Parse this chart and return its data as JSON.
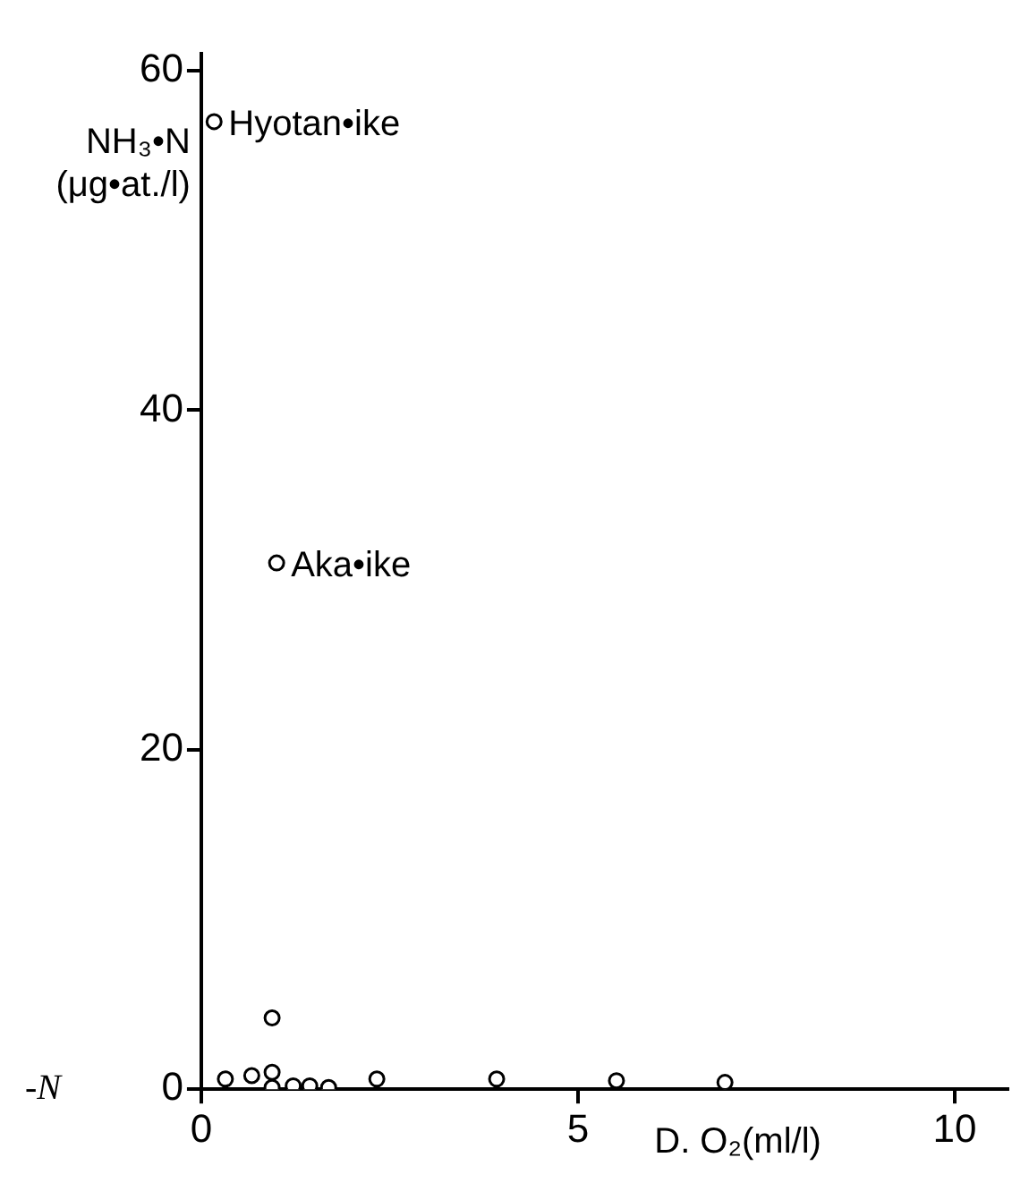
{
  "chart_data": {
    "type": "scatter",
    "xlabel": "D. O₂(ml/l)",
    "ylabel": "NH₃•N (μg•at./l)",
    "x": [
      0.17,
      1.0,
      0.32,
      0.67,
      0.94,
      0.94,
      0.94,
      1.22,
      1.44,
      1.69,
      2.33,
      3.92,
      5.51,
      6.95
    ],
    "values": [
      57,
      31,
      0.6,
      0.8,
      4.2,
      1.0,
      0.1,
      0.2,
      0.2,
      0.1,
      0.6,
      0.6,
      0.5,
      0.4
    ],
    "color": "#000000",
    "marker": "circle",
    "grid": false,
    "legend": false,
    "xlim": [
      0,
      10.7
    ],
    "ylim": [
      0,
      61
    ],
    "xticks": [
      0,
      5,
      10
    ],
    "yticks": [
      0,
      20,
      40,
      60
    ],
    "annotations": [
      {
        "text": "Hyotan•ike",
        "x": 0.17,
        "y": 57
      },
      {
        "text": "Aka•ike",
        "x": 1.0,
        "y": 31
      },
      "-N"
    ]
  }
}
